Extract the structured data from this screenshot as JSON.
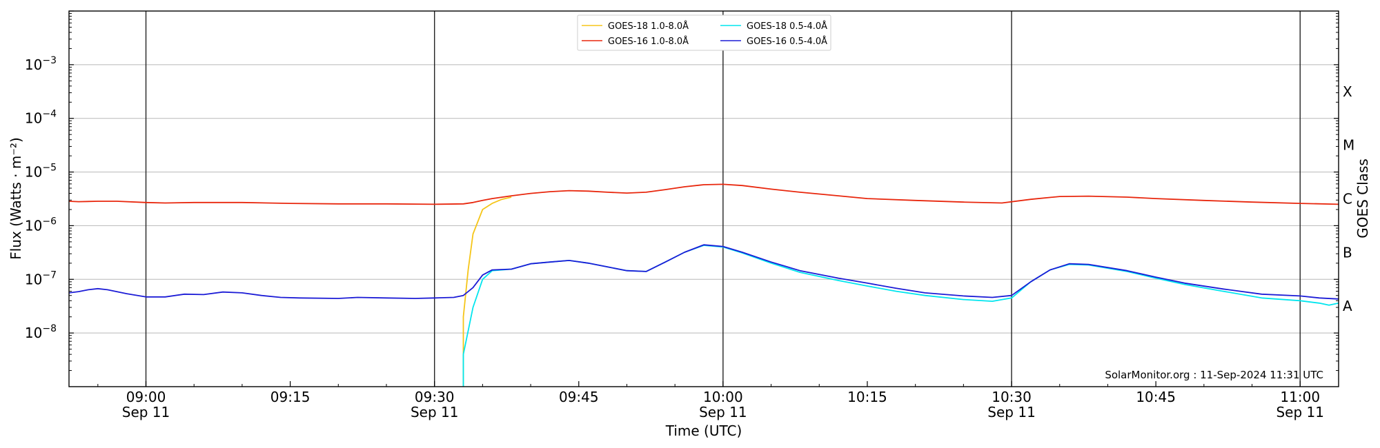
{
  "chart_data": {
    "type": "line",
    "title": "",
    "xlabel": "Time (UTC)",
    "ylabel": "Flux (Watts · m⁻²)",
    "ylabel_right": "GOES Class",
    "y_scale": "log",
    "ylim": [
      1e-09,
      0.01
    ],
    "xlim": [
      "08:52",
      "11:04"
    ],
    "grid": "horizontal",
    "legend_position": "top-center",
    "annotation": "SolarMonitor.org : 11-Sep-2024 11:31 UTC",
    "x_ticks": [
      {
        "t": "09:00",
        "label": "09:00",
        "sub": "Sep 11",
        "vline": true
      },
      {
        "t": "09:15",
        "label": "09:15",
        "sub": "",
        "vline": false
      },
      {
        "t": "09:30",
        "label": "09:30",
        "sub": "Sep 11",
        "vline": true
      },
      {
        "t": "09:45",
        "label": "09:45",
        "sub": "",
        "vline": false
      },
      {
        "t": "10:00",
        "label": "10:00",
        "sub": "Sep 11",
        "vline": true
      },
      {
        "t": "10:15",
        "label": "10:15",
        "sub": "",
        "vline": false
      },
      {
        "t": "10:30",
        "label": "10:30",
        "sub": "Sep 11",
        "vline": true
      },
      {
        "t": "10:45",
        "label": "10:45",
        "sub": "",
        "vline": false
      },
      {
        "t": "11:00",
        "label": "11:00",
        "sub": "Sep 11",
        "vline": true
      }
    ],
    "y_ticks": [
      {
        "value": 1e-08,
        "label": "10",
        "exp": "−8"
      },
      {
        "value": 1e-07,
        "label": "10",
        "exp": "−7"
      },
      {
        "value": 1e-06,
        "label": "10",
        "exp": "−6"
      },
      {
        "value": 1e-05,
        "label": "10",
        "exp": "−5"
      },
      {
        "value": 0.0001,
        "label": "10",
        "exp": "−4"
      },
      {
        "value": 0.001,
        "label": "10",
        "exp": "−3"
      }
    ],
    "goes_classes": [
      {
        "label": "A",
        "value": 3.16e-08
      },
      {
        "label": "B",
        "value": 3.16e-07
      },
      {
        "label": "C",
        "value": 3.16e-06
      },
      {
        "label": "M",
        "value": 3.16e-05
      },
      {
        "label": "X",
        "value": 0.000316
      }
    ],
    "legend_columns": [
      [
        "GOES-18 1.0-8.0Å",
        "GOES-16 1.0-8.0Å"
      ],
      [
        "GOES-18 0.5-4.0Å",
        "GOES-16 0.5-4.0Å"
      ]
    ],
    "series": [
      {
        "name": "GOES-18 1.0-8.0Å",
        "color": "#f5c518",
        "points": [
          [
            "09:33",
            1e-09
          ],
          [
            "09:33",
            2e-08
          ],
          [
            "09:33.5",
            1.5e-07
          ],
          [
            "09:34",
            7e-07
          ],
          [
            "09:35",
            2e-06
          ],
          [
            "09:36",
            2.6e-06
          ],
          [
            "09:37",
            3.1e-06
          ],
          [
            "09:38",
            3.4e-06
          ]
        ]
      },
      {
        "name": "GOES-16 1.0-8.0Å",
        "color": "#e8260c",
        "points": [
          [
            "08:52",
            2.85e-06
          ],
          [
            "08:53",
            2.8e-06
          ],
          [
            "08:55",
            2.85e-06
          ],
          [
            "08:57",
            2.85e-06
          ],
          [
            "09:00",
            2.7e-06
          ],
          [
            "09:02",
            2.65e-06
          ],
          [
            "09:05",
            2.7e-06
          ],
          [
            "09:10",
            2.7e-06
          ],
          [
            "09:15",
            2.6e-06
          ],
          [
            "09:20",
            2.55e-06
          ],
          [
            "09:25",
            2.55e-06
          ],
          [
            "09:30",
            2.5e-06
          ],
          [
            "09:33",
            2.55e-06
          ],
          [
            "09:34",
            2.7e-06
          ],
          [
            "09:35",
            2.95e-06
          ],
          [
            "09:36",
            3.2e-06
          ],
          [
            "09:38",
            3.6e-06
          ],
          [
            "09:40",
            4e-06
          ],
          [
            "09:42",
            4.3e-06
          ],
          [
            "09:44",
            4.5e-06
          ],
          [
            "09:46",
            4.4e-06
          ],
          [
            "09:48",
            4.2e-06
          ],
          [
            "09:50",
            4.05e-06
          ],
          [
            "09:52",
            4.2e-06
          ],
          [
            "09:54",
            4.7e-06
          ],
          [
            "09:56",
            5.3e-06
          ],
          [
            "09:58",
            5.8e-06
          ],
          [
            "10:00",
            5.9e-06
          ],
          [
            "10:02",
            5.6e-06
          ],
          [
            "10:05",
            4.8e-06
          ],
          [
            "10:08",
            4.2e-06
          ],
          [
            "10:12",
            3.6e-06
          ],
          [
            "10:15",
            3.2e-06
          ],
          [
            "10:20",
            2.95e-06
          ],
          [
            "10:25",
            2.75e-06
          ],
          [
            "10:29",
            2.65e-06
          ],
          [
            "10:32",
            3.1e-06
          ],
          [
            "10:35",
            3.5e-06
          ],
          [
            "10:38",
            3.55e-06
          ],
          [
            "10:42",
            3.4e-06
          ],
          [
            "10:45",
            3.2e-06
          ],
          [
            "10:50",
            2.95e-06
          ],
          [
            "10:55",
            2.75e-06
          ],
          [
            "11:00",
            2.6e-06
          ],
          [
            "11:04",
            2.5e-06
          ]
        ]
      },
      {
        "name": "GOES-18 0.5-4.0Å",
        "color": "#00e5ee",
        "points": [
          [
            "09:33",
            1e-09
          ],
          [
            "09:33",
            4e-09
          ],
          [
            "09:34",
            3e-08
          ],
          [
            "09:35",
            1e-07
          ],
          [
            "09:36",
            1.45e-07
          ],
          [
            "09:37",
            1.5e-07
          ],
          [
            "09:38",
            1.55e-07
          ],
          [
            "09:40",
            1.95e-07
          ],
          [
            "09:42",
            2.1e-07
          ],
          [
            "09:44",
            2.25e-07
          ],
          [
            "09:46",
            2e-07
          ],
          [
            "09:48",
            1.7e-07
          ],
          [
            "09:50",
            1.45e-07
          ],
          [
            "09:52",
            1.4e-07
          ],
          [
            "09:54",
            2.1e-07
          ],
          [
            "09:56",
            3.2e-07
          ],
          [
            "09:58",
            4.3e-07
          ],
          [
            "10:00",
            4e-07
          ],
          [
            "10:02",
            3.1e-07
          ],
          [
            "10:05",
            2e-07
          ],
          [
            "10:08",
            1.35e-07
          ],
          [
            "10:12",
            9.5e-08
          ],
          [
            "10:15",
            7.5e-08
          ],
          [
            "10:18",
            6e-08
          ],
          [
            "10:21",
            5e-08
          ],
          [
            "10:25",
            4.2e-08
          ],
          [
            "10:28",
            3.9e-08
          ],
          [
            "10:30",
            4.5e-08
          ],
          [
            "10:32",
            9e-08
          ],
          [
            "10:34",
            1.5e-07
          ],
          [
            "10:36",
            1.9e-07
          ],
          [
            "10:38",
            1.85e-07
          ],
          [
            "10:42",
            1.4e-07
          ],
          [
            "10:45",
            1.05e-07
          ],
          [
            "10:48",
            8e-08
          ],
          [
            "10:52",
            6e-08
          ],
          [
            "10:56",
            4.5e-08
          ],
          [
            "11:00",
            4e-08
          ],
          [
            "11:02",
            3.6e-08
          ],
          [
            "11:03",
            3.3e-08
          ],
          [
            "11:04",
            3.6e-08
          ]
        ]
      },
      {
        "name": "GOES-16 0.5-4.0Å",
        "color": "#1b1bd6",
        "points": [
          [
            "08:52",
            5.6e-08
          ],
          [
            "08:53",
            5.9e-08
          ],
          [
            "08:54",
            6.4e-08
          ],
          [
            "08:55",
            6.7e-08
          ],
          [
            "08:56",
            6.4e-08
          ],
          [
            "08:58",
            5.4e-08
          ],
          [
            "09:00",
            4.7e-08
          ],
          [
            "09:02",
            4.7e-08
          ],
          [
            "09:04",
            5.3e-08
          ],
          [
            "09:06",
            5.2e-08
          ],
          [
            "09:08",
            5.8e-08
          ],
          [
            "09:10",
            5.6e-08
          ],
          [
            "09:12",
            5e-08
          ],
          [
            "09:14",
            4.6e-08
          ],
          [
            "09:16",
            4.5e-08
          ],
          [
            "09:20",
            4.4e-08
          ],
          [
            "09:22",
            4.6e-08
          ],
          [
            "09:25",
            4.5e-08
          ],
          [
            "09:28",
            4.4e-08
          ],
          [
            "09:30",
            4.5e-08
          ],
          [
            "09:32",
            4.6e-08
          ],
          [
            "09:33",
            5e-08
          ],
          [
            "09:34",
            7e-08
          ],
          [
            "09:35",
            1.2e-07
          ],
          [
            "09:36",
            1.5e-07
          ],
          [
            "09:38",
            1.55e-07
          ],
          [
            "09:40",
            1.95e-07
          ],
          [
            "09:42",
            2.1e-07
          ],
          [
            "09:44",
            2.25e-07
          ],
          [
            "09:46",
            2e-07
          ],
          [
            "09:48",
            1.7e-07
          ],
          [
            "09:50",
            1.45e-07
          ],
          [
            "09:52",
            1.4e-07
          ],
          [
            "09:54",
            2.1e-07
          ],
          [
            "09:56",
            3.2e-07
          ],
          [
            "09:58",
            4.4e-07
          ],
          [
            "10:00",
            4.1e-07
          ],
          [
            "10:02",
            3.2e-07
          ],
          [
            "10:05",
            2.1e-07
          ],
          [
            "10:08",
            1.45e-07
          ],
          [
            "10:12",
            1.05e-07
          ],
          [
            "10:15",
            8.5e-08
          ],
          [
            "10:18",
            6.8e-08
          ],
          [
            "10:21",
            5.6e-08
          ],
          [
            "10:25",
            4.9e-08
          ],
          [
            "10:28",
            4.6e-08
          ],
          [
            "10:30",
            5e-08
          ],
          [
            "10:32",
            9e-08
          ],
          [
            "10:34",
            1.5e-07
          ],
          [
            "10:36",
            1.95e-07
          ],
          [
            "10:38",
            1.9e-07
          ],
          [
            "10:42",
            1.45e-07
          ],
          [
            "10:45",
            1.1e-07
          ],
          [
            "10:48",
            8.5e-08
          ],
          [
            "10:52",
            6.6e-08
          ],
          [
            "10:56",
            5.3e-08
          ],
          [
            "11:00",
            4.9e-08
          ],
          [
            "11:02",
            4.5e-08
          ],
          [
            "11:04",
            4.3e-08
          ]
        ]
      }
    ]
  }
}
